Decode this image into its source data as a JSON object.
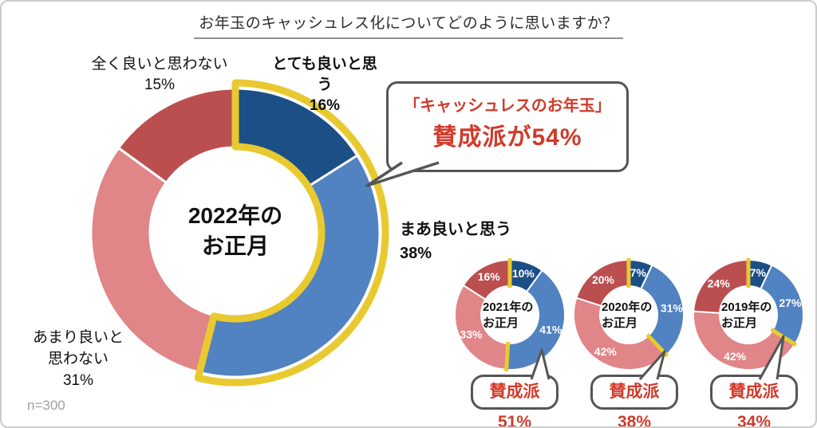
{
  "page": {
    "title": "お年玉のキャッシュレス化についてどのように思いますか？",
    "sample_note": "n=300"
  },
  "colors": {
    "agree_strong": "#1B4F85",
    "agree_mild": "#5182C1",
    "disagree_mild": "#E08588",
    "disagree_strong": "#BB4F50",
    "highlight": "#E9C930",
    "accent_red": "#D13A2B",
    "bubble_border": "#555555"
  },
  "main_labels": {
    "very_good": {
      "line1": "とても良いと思う",
      "value": "16%"
    },
    "somewhat_good": {
      "line1": "まあ良いと思う",
      "value": "38%"
    },
    "not_really": {
      "line1": "あまり良いと",
      "line2": "思わない",
      "value": "31%"
    },
    "not_at_all": {
      "line1": "全く良いと思わない",
      "value": "15%"
    }
  },
  "callout_main": {
    "line1": "「キャッシュレスのお年玉」",
    "line2": "賛成派が54%"
  },
  "chart_data": [
    {
      "type": "donut",
      "title": "2022年のお正月",
      "center": {
        "line1": "2022年の",
        "line2": "お正月"
      },
      "categories": [
        "とても良いと思う",
        "まあ良いと思う",
        "あまり良いと思わない",
        "全く良いと思わない"
      ],
      "values": [
        16,
        38,
        31,
        15
      ],
      "unit": "%",
      "agree_total_pct": 54,
      "callout": "賛成派が54%"
    },
    {
      "type": "donut",
      "title": "2021年のお正月",
      "center": {
        "line1": "2021年の",
        "line2": "お正月"
      },
      "categories": [
        "とても良いと思う",
        "まあ良いと思う",
        "あまり良いと思わない",
        "全く良いと思わない"
      ],
      "values": [
        10,
        41,
        33,
        16
      ],
      "unit": "%",
      "agree_total_pct": 51,
      "callout": "賛成派51%"
    },
    {
      "type": "donut",
      "title": "2020年のお正月",
      "center": {
        "line1": "2020年の",
        "line2": "お正月"
      },
      "categories": [
        "とても良いと思う",
        "まあ良いと思う",
        "あまり良いと思わない",
        "全く良いと思わない"
      ],
      "values": [
        7,
        31,
        42,
        20
      ],
      "unit": "%",
      "agree_total_pct": 38,
      "callout": "賛成派38%"
    },
    {
      "type": "donut",
      "title": "2019年のお正月",
      "center": {
        "line1": "2019年の",
        "line2": "お正月"
      },
      "categories": [
        "とても良いと思う",
        "まあ良いと思う",
        "あまり良いと思わない",
        "全く良いと思わない"
      ],
      "values": [
        7,
        27,
        42,
        24
      ],
      "unit": "%",
      "agree_total_pct": 34,
      "callout": "賛成派34%"
    }
  ]
}
